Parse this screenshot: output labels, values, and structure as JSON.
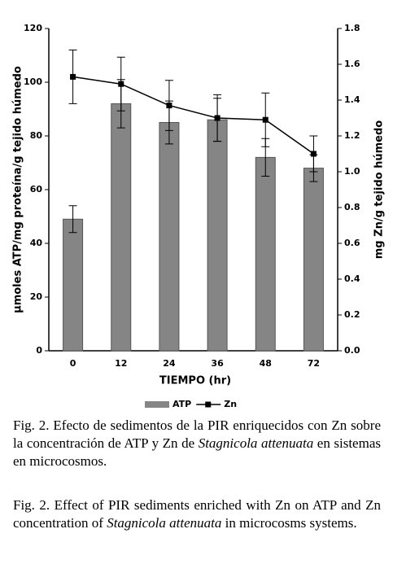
{
  "chart_data": {
    "type": "bar",
    "xlabel": "TIEMPO (hr)",
    "ylabel": "µmoles ATP/mg proteína/g tejido húmedo",
    "y2label": "mg Zn/g tejido húmedo",
    "categories": [
      "0",
      "12",
      "24",
      "36",
      "48",
      "72"
    ],
    "series": [
      {
        "name": "ATP",
        "type": "bar",
        "color": "#858585",
        "values": [
          49,
          92,
          85,
          86,
          72,
          68
        ],
        "errors": [
          5,
          9,
          8,
          8,
          7,
          5
        ]
      },
      {
        "name": "Zn",
        "type": "line",
        "axis": "y2",
        "color": "#000000",
        "values": [
          1.53,
          1.49,
          1.37,
          1.3,
          1.29,
          1.1
        ],
        "errors": [
          0.15,
          0.15,
          0.14,
          0.13,
          0.15,
          0.1
        ]
      }
    ],
    "ylim": [
      0,
      120
    ],
    "yticks": [
      0,
      20,
      40,
      60,
      80,
      100,
      120
    ],
    "y2lim": [
      0,
      1.8
    ],
    "y2ticks": [
      {
        "value": 0,
        "label": "0.0"
      },
      0.2,
      0.4,
      0.6,
      0.8,
      {
        "value": 1,
        "label": "1.0"
      },
      1.2,
      1.4,
      1.6,
      1.8
    ],
    "legend": "bottom"
  },
  "captions": [
    [
      "Fig. 2. Efecto de sedimentos de la PIR enriquecidos con Zn sobre la concentración de ATP y Zn de ",
      "Stagnicola attenuata",
      " en sistemas en microcosmos."
    ],
    [
      "Fig. 2. Effect of PIR sediments enriched with Zn on ATP and Zn concentration of ",
      "Stagnicola attenuata",
      " in microcosms systems."
    ]
  ]
}
